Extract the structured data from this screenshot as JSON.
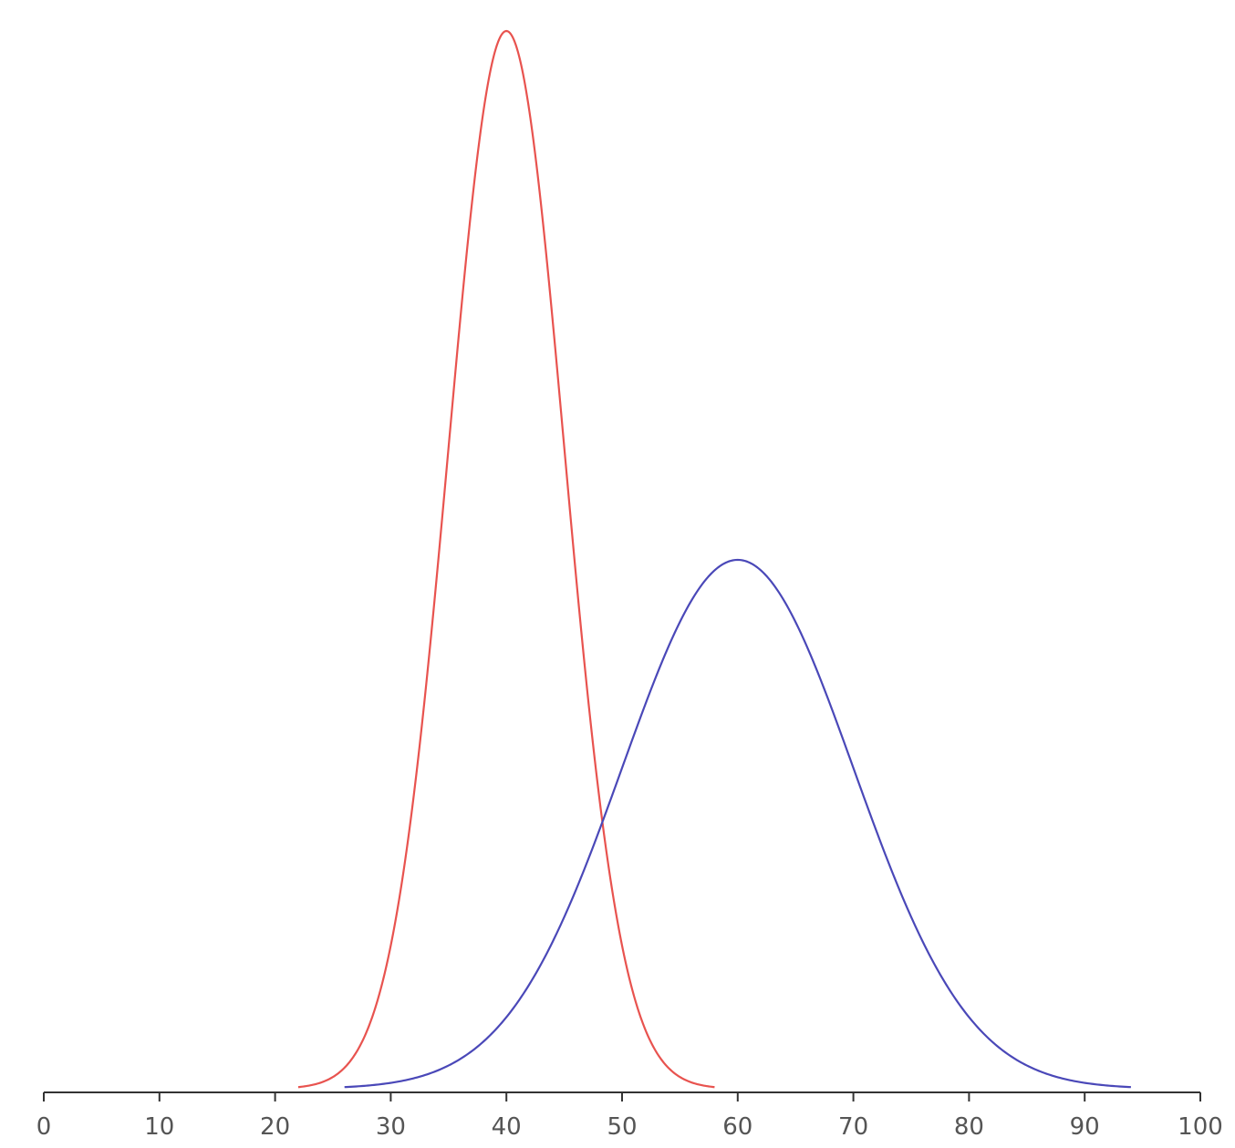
{
  "chart_data": {
    "type": "line",
    "title": "",
    "xlabel": "",
    "ylabel": "",
    "xlim": [
      0,
      100
    ],
    "x_ticks": [
      0,
      10,
      20,
      30,
      40,
      50,
      60,
      70,
      80,
      90,
      100
    ],
    "x_tick_labels": [
      "0",
      "10",
      "20",
      "30",
      "40",
      "50",
      "60",
      "70",
      "80",
      "90",
      "100"
    ],
    "y_axis_visible": false,
    "grid": false,
    "legend": "none",
    "series": [
      {
        "color": "#e8534f",
        "shape": "normal",
        "mean": 40,
        "std": 5,
        "x_range": [
          22,
          58
        ],
        "relative_peak_height": 1.0
      },
      {
        "color": "#4a48b8",
        "shape": "normal",
        "mean": 60,
        "std": 10,
        "x_range": [
          26,
          94
        ],
        "relative_peak_height": 0.5
      }
    ]
  }
}
